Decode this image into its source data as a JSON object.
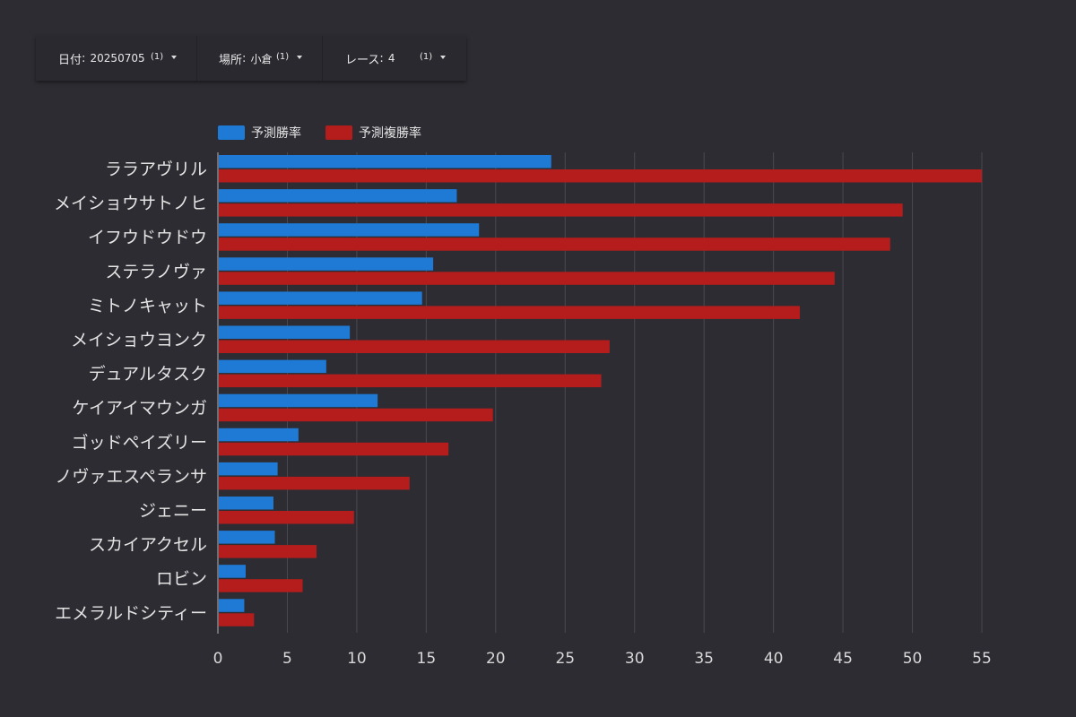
{
  "filters": [
    {
      "label": "日付",
      "value": "20250705",
      "count": "(1)"
    },
    {
      "label": "場所",
      "value": "小倉",
      "count": "(1)"
    },
    {
      "label": "レース",
      "value": "4",
      "count": "(1)"
    }
  ],
  "icons": {
    "dropdown": "caret-down-icon"
  },
  "colors": {
    "background": "#2d2c32",
    "win_rate": "#1f7ad6",
    "place_rate": "#b51d1d",
    "grid": "#4a4950",
    "text": "#e6e6e6"
  },
  "chart_data": {
    "type": "bar",
    "orientation": "horizontal",
    "categories": [
      "ララアヴリル",
      "メイショウサトノヒ",
      "イフウドウドウ",
      "ステラノヴァ",
      "ミトノキャット",
      "メイショウヨンク",
      "デュアルタスク",
      "ケイアイマウンガ",
      "ゴッドペイズリー",
      "ノヴァエスペランサ",
      "ジェニー",
      "スカイアクセル",
      "ロビン",
      "エメラルドシティー"
    ],
    "series": [
      {
        "name": "予測勝率",
        "color": "#1f7ad6",
        "values": [
          24.0,
          17.2,
          18.8,
          15.5,
          14.7,
          9.5,
          7.8,
          11.5,
          5.8,
          4.3,
          4.0,
          4.1,
          2.0,
          1.9
        ]
      },
      {
        "name": "予測複勝率",
        "color": "#b51d1d",
        "values": [
          55.0,
          49.3,
          48.4,
          44.4,
          41.9,
          28.2,
          27.6,
          19.8,
          16.6,
          13.8,
          9.8,
          7.1,
          6.1,
          2.6
        ]
      }
    ],
    "xlim": [
      0,
      55
    ],
    "xticks": [
      "0",
      "5",
      "10",
      "15",
      "20",
      "25",
      "30",
      "35",
      "40",
      "45",
      "50",
      "55"
    ],
    "xtick_values": [
      0,
      5,
      10,
      15,
      20,
      25,
      30,
      35,
      40,
      45,
      50,
      55
    ],
    "grid": true,
    "legend_position": "top-left"
  }
}
